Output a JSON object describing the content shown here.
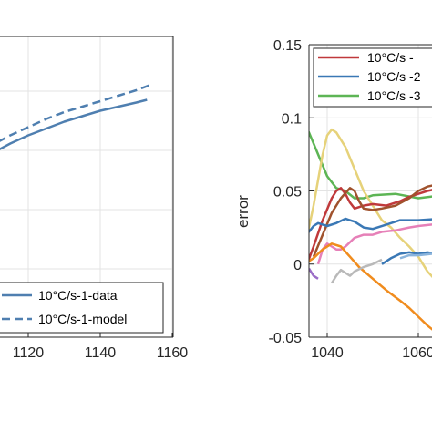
{
  "chart_data": [
    {
      "type": "line",
      "position": "left",
      "xlabel": "",
      "ylabel": "",
      "xlim": [
        1100,
        1160
      ],
      "x_ticks": [
        "1120",
        "1140",
        "1160"
      ],
      "grid": true,
      "legend": {
        "placement": "bottom-right"
      },
      "series": [
        {
          "name": "10°C/s-1-data",
          "color": "#4f7fb0",
          "style": "solid",
          "x": [
            1100,
            1105,
            1110,
            1115,
            1120,
            1125,
            1130,
            1135,
            1140,
            1145,
            1150,
            1153
          ],
          "y": [
            0.0,
            0.1,
            0.18,
            0.25,
            0.31,
            0.36,
            0.41,
            0.45,
            0.49,
            0.52,
            0.55,
            0.57
          ]
        },
        {
          "name": "10°C/s-1-model",
          "color": "#4f7fb0",
          "style": "dashed",
          "x": [
            1100,
            1105,
            1110,
            1115,
            1120,
            1125,
            1130,
            1135,
            1140,
            1145,
            1150,
            1154
          ],
          "y": [
            0.05,
            0.15,
            0.24,
            0.31,
            0.37,
            0.43,
            0.48,
            0.52,
            0.56,
            0.6,
            0.64,
            0.68
          ]
        }
      ]
    },
    {
      "type": "line",
      "position": "right",
      "xlabel": "",
      "ylabel": "error",
      "xlim": [
        1030,
        1070
      ],
      "ylim": [
        -0.05,
        0.15
      ],
      "x_ticks": [
        "1040",
        "1060"
      ],
      "y_ticks": [
        "-0.05",
        "0",
        "0.05",
        "0.1",
        "0.15"
      ],
      "grid": true,
      "legend": {
        "placement": "top-right"
      },
      "legend_entries": [
        {
          "label": "10°C/s -",
          "color": "#c0393b"
        },
        {
          "label": "10°C/s -2",
          "color": "#3a78b5"
        },
        {
          "label": "10°C/s -3",
          "color": "#5db555"
        }
      ],
      "series": [
        {
          "color": "#5db555",
          "x": [
            1031,
            1032,
            1033,
            1034,
            1035,
            1036,
            1038,
            1040,
            1042,
            1044,
            1046,
            1048,
            1050,
            1055,
            1060,
            1065,
            1070
          ],
          "y": [
            0.0,
            0.03,
            0.07,
            0.093,
            0.095,
            0.09,
            0.075,
            0.06,
            0.052,
            0.05,
            0.045,
            0.045,
            0.047,
            0.048,
            0.045,
            0.047,
            0.047
          ]
        },
        {
          "color": "#e6d27a",
          "x": [
            1033,
            1035,
            1037,
            1039,
            1040,
            1041,
            1042,
            1044,
            1046,
            1048,
            1050,
            1052,
            1054,
            1056,
            1058,
            1060,
            1062,
            1065,
            1068
          ],
          "y": [
            -0.005,
            0.01,
            0.04,
            0.075,
            0.088,
            0.092,
            0.09,
            0.08,
            0.065,
            0.05,
            0.04,
            0.03,
            0.025,
            0.018,
            0.012,
            0.005,
            -0.005,
            -0.015,
            -0.025
          ]
        },
        {
          "color": "#c0393b",
          "x": [
            1035,
            1037,
            1039,
            1041,
            1042,
            1043,
            1044,
            1045,
            1046,
            1048,
            1050,
            1053,
            1056,
            1058,
            1060,
            1062,
            1065,
            1068,
            1070
          ],
          "y": [
            -0.005,
            0.012,
            0.03,
            0.045,
            0.05,
            0.052,
            0.048,
            0.042,
            0.038,
            0.04,
            0.041,
            0.04,
            0.043,
            0.046,
            0.048,
            0.05,
            0.052,
            0.052,
            0.053
          ]
        },
        {
          "color": "#a0522d",
          "x": [
            1037,
            1039,
            1041,
            1043,
            1045,
            1046,
            1047,
            1048,
            1050,
            1052,
            1055,
            1058,
            1060,
            1062,
            1065,
            1068,
            1070
          ],
          "y": [
            0.005,
            0.02,
            0.035,
            0.045,
            0.052,
            0.05,
            0.043,
            0.038,
            0.037,
            0.038,
            0.04,
            0.045,
            0.05,
            0.053,
            0.055,
            0.057,
            0.058
          ]
        },
        {
          "color": "#3a78b5",
          "x": [
            1031,
            1033,
            1034,
            1035,
            1036,
            1037,
            1038,
            1040,
            1042,
            1044,
            1046,
            1048,
            1050,
            1053,
            1056,
            1060,
            1065,
            1070
          ],
          "y": [
            -0.01,
            0.015,
            0.03,
            0.028,
            0.022,
            0.026,
            0.028,
            0.026,
            0.028,
            0.031,
            0.029,
            0.025,
            0.024,
            0.027,
            0.03,
            0.03,
            0.031,
            0.032
          ]
        },
        {
          "color": "#e680b8",
          "x": [
            1038,
            1039,
            1040,
            1041,
            1042,
            1043,
            1044,
            1046,
            1048,
            1050,
            1052,
            1055,
            1058,
            1060,
            1063,
            1066,
            1070
          ],
          "y": [
            0.0,
            0.01,
            0.014,
            0.012,
            0.01,
            0.01,
            0.012,
            0.018,
            0.02,
            0.02,
            0.022,
            0.023,
            0.025,
            0.026,
            0.027,
            0.027,
            0.028
          ]
        },
        {
          "color": "#f08c1e",
          "x": [
            1031,
            1033,
            1035,
            1037,
            1039,
            1041,
            1043,
            1045,
            1047,
            1050,
            1053,
            1056,
            1058,
            1060,
            1062,
            1064,
            1066
          ],
          "y": [
            -0.008,
            -0.004,
            0.0,
            0.004,
            0.01,
            0.014,
            0.012,
            0.005,
            -0.002,
            -0.01,
            -0.018,
            -0.025,
            -0.03,
            -0.036,
            -0.042,
            -0.047,
            -0.05
          ]
        },
        {
          "color": "#b9b9b9",
          "x": [
            1041,
            1042,
            1043,
            1044,
            1045,
            1046,
            1048,
            1050,
            1052
          ],
          "y": [
            -0.013,
            -0.008,
            -0.004,
            -0.006,
            -0.008,
            -0.005,
            -0.002,
            0.0,
            0.003
          ]
        },
        {
          "color": "#3a78b5",
          "x": [
            1052,
            1054,
            1056,
            1058,
            1060,
            1062,
            1064,
            1066,
            1068,
            1070
          ],
          "y": [
            0.0,
            0.004,
            0.007,
            0.008,
            0.007,
            0.008,
            0.007,
            0.008,
            0.008,
            0.009
          ]
        },
        {
          "color": "#8ab4dc",
          "x": [
            1056,
            1058,
            1060,
            1063,
            1066,
            1070
          ],
          "y": [
            0.004,
            0.006,
            0.006,
            0.007,
            0.007,
            0.008
          ]
        },
        {
          "color": "#9b6ec7",
          "x": [
            1036,
            1037,
            1038
          ],
          "y": [
            -0.003,
            -0.008,
            -0.01
          ]
        }
      ]
    }
  ]
}
